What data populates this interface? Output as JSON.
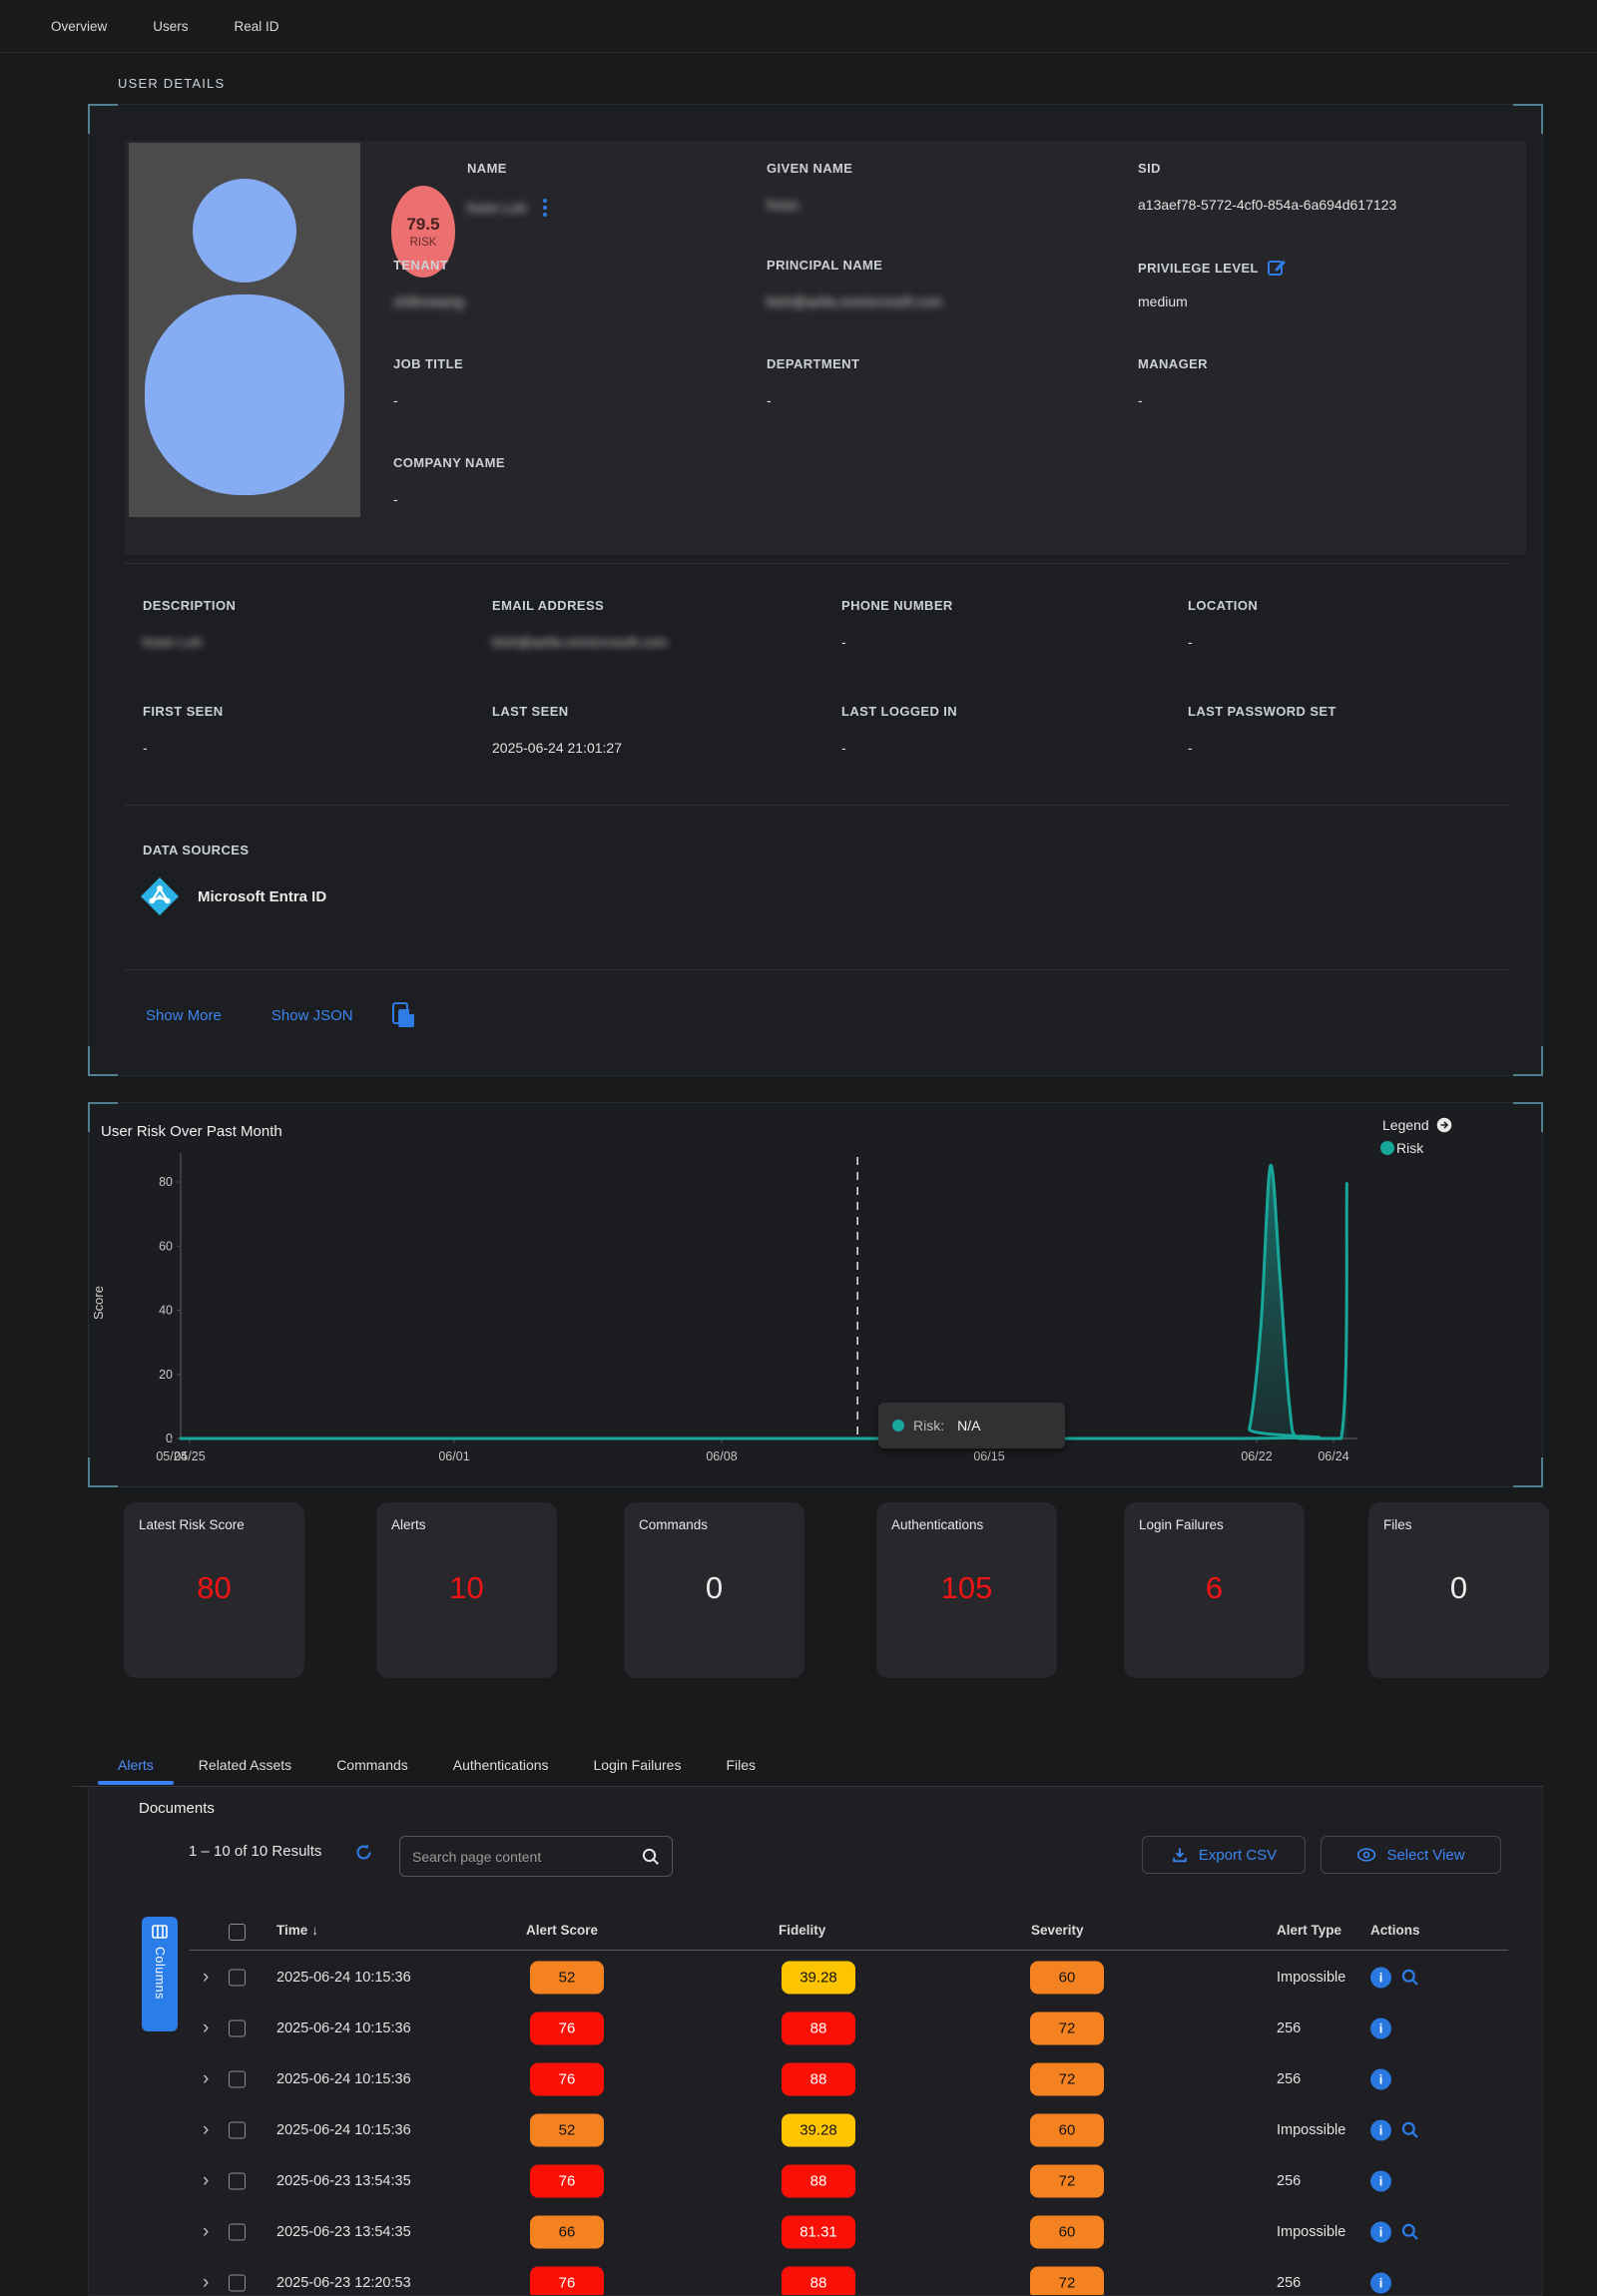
{
  "nav": {
    "tabs": [
      {
        "label": "Overview"
      },
      {
        "label": "Users"
      },
      {
        "label": "Real ID"
      }
    ]
  },
  "user_details": {
    "section_title": "USER DETAILS",
    "risk_badge": {
      "score": "79.5",
      "label": "RISK"
    },
    "profile_fields": [
      {
        "label": "NAME",
        "value": "Keen Loh",
        "blurred": true,
        "menu": true
      },
      {
        "label": "GIVEN NAME",
        "value": "Keen",
        "blurred": true
      },
      {
        "label": "SID",
        "value": "a13aef78-5772-4cf0-854a-6a694d617123"
      },
      {
        "label": "TENANT",
        "value": "zhifenwang",
        "blurred": true
      },
      {
        "label": "PRINCIPAL NAME",
        "value": "kloh@aella.onmicrosoft.com",
        "blurred": true
      },
      {
        "label": "PRIVILEGE LEVEL",
        "value": "medium",
        "edit": true
      },
      {
        "label": "JOB TITLE",
        "value": "-"
      },
      {
        "label": "DEPARTMENT",
        "value": "-"
      },
      {
        "label": "MANAGER",
        "value": "-"
      },
      {
        "label": "COMPANY NAME",
        "value": "-"
      }
    ],
    "detail_fields": [
      {
        "label": "DESCRIPTION",
        "value": "Keen Loh",
        "blurred": true
      },
      {
        "label": "EMAIL ADDRESS",
        "value": "kloh@aella.onmicrosoft.com",
        "blurred": true
      },
      {
        "label": "PHONE NUMBER",
        "value": "-"
      },
      {
        "label": "LOCATION",
        "value": "-"
      },
      {
        "label": "FIRST SEEN",
        "value": "-"
      },
      {
        "label": "LAST SEEN",
        "value": "2025-06-24 21:01:27"
      },
      {
        "label": "LAST LOGGED IN",
        "value": "-"
      },
      {
        "label": "LAST PASSWORD SET",
        "value": "-"
      }
    ],
    "data_sources": {
      "title": "DATA SOURCES",
      "items": [
        {
          "name": "Microsoft Entra ID"
        }
      ]
    },
    "links": {
      "show_more": "Show More",
      "show_json": "Show JSON"
    }
  },
  "chart": {
    "title": "User Risk Over Past Month",
    "legend_title": "Legend",
    "ylabel": "Score",
    "tooltip": {
      "series": "Risk",
      "label": "Risk:",
      "value": "N/A"
    }
  },
  "chart_data": {
    "type": "area",
    "series_name": "Risk",
    "color": "#18a79b",
    "x": [
      "05/24",
      "05/25",
      "05/26",
      "05/27",
      "05/28",
      "05/29",
      "05/30",
      "05/31",
      "06/01",
      "06/02",
      "06/03",
      "06/04",
      "06/05",
      "06/06",
      "06/07",
      "06/08",
      "06/09",
      "06/10",
      "06/11",
      "06/12",
      "06/13",
      "06/14",
      "06/15",
      "06/16",
      "06/17",
      "06/18",
      "06/19",
      "06/20",
      "06/21",
      "06/22",
      "06/23",
      "06/24"
    ],
    "values": [
      0,
      0,
      0,
      0,
      0,
      0,
      0,
      0,
      0,
      0,
      0,
      0,
      0,
      0,
      0,
      0,
      0,
      0,
      0,
      0,
      0,
      0,
      0,
      0,
      0,
      0,
      0,
      0,
      0,
      85,
      0,
      79.5
    ],
    "yticks": [
      0,
      20,
      40,
      60,
      80
    ],
    "xtick_labels": [
      "05/24",
      "05/25",
      "06/01",
      "06/08",
      "06/15",
      "06/22",
      "06/24"
    ],
    "ylim": [
      0,
      90
    ],
    "marker_line_x": "06/12",
    "render_points": [
      [
        -0.16,
        0
      ],
      [
        27.5,
        0
      ],
      [
        27.8,
        3
      ],
      [
        28.1,
        35
      ],
      [
        28.35,
        85
      ],
      [
        28.6,
        50
      ],
      [
        28.85,
        10
      ],
      [
        29.1,
        0
      ],
      [
        30.2,
        0
      ],
      [
        30.35,
        79.5
      ]
    ]
  },
  "stats": [
    {
      "label": "Latest Risk Score",
      "value": "80",
      "alert": true
    },
    {
      "label": "Alerts",
      "value": "10",
      "alert": true
    },
    {
      "label": "Commands",
      "value": "0",
      "alert": false
    },
    {
      "label": "Authentications",
      "value": "105",
      "alert": true
    },
    {
      "label": "Login Failures",
      "value": "6",
      "alert": true
    },
    {
      "label": "Files",
      "value": "0",
      "alert": false
    }
  ],
  "tabs": [
    {
      "label": "Alerts",
      "active": true
    },
    {
      "label": "Related Assets",
      "active": false
    },
    {
      "label": "Commands",
      "active": false
    },
    {
      "label": "Authentications",
      "active": false
    },
    {
      "label": "Login Failures",
      "active": false
    },
    {
      "label": "Files",
      "active": false
    }
  ],
  "documents": {
    "title": "Documents",
    "results_text": "1 – 10 of 10 Results",
    "search_placeholder": "Search page content",
    "export_label": "Export CSV",
    "select_view_label": "Select View",
    "columns_label": "Columns",
    "table": {
      "headers": [
        "Time",
        "Alert Score",
        "Fidelity",
        "Severity",
        "Alert Type",
        "Actions"
      ],
      "badge_colors": {
        "red": "#fb1007",
        "orange": "#f58220",
        "yellow": "#fdc501"
      },
      "rows": [
        {
          "time": "2025-06-24 10:15:36",
          "score": "52",
          "score_color": "orange",
          "fidelity": "39.28",
          "fidelity_color": "yellow",
          "severity": "60",
          "severity_color": "orange",
          "type": "Impossible",
          "search_action": true
        },
        {
          "time": "2025-06-24 10:15:36",
          "score": "76",
          "score_color": "red",
          "fidelity": "88",
          "fidelity_color": "red",
          "severity": "72",
          "severity_color": "orange",
          "type": "256",
          "search_action": false
        },
        {
          "time": "2025-06-24 10:15:36",
          "score": "76",
          "score_color": "red",
          "fidelity": "88",
          "fidelity_color": "red",
          "severity": "72",
          "severity_color": "orange",
          "type": "256",
          "search_action": false
        },
        {
          "time": "2025-06-24 10:15:36",
          "score": "52",
          "score_color": "orange",
          "fidelity": "39.28",
          "fidelity_color": "yellow",
          "severity": "60",
          "severity_color": "orange",
          "type": "Impossible",
          "search_action": true
        },
        {
          "time": "2025-06-23 13:54:35",
          "score": "76",
          "score_color": "red",
          "fidelity": "88",
          "fidelity_color": "red",
          "severity": "72",
          "severity_color": "orange",
          "type": "256",
          "search_action": false
        },
        {
          "time": "2025-06-23 13:54:35",
          "score": "66",
          "score_color": "orange",
          "fidelity": "81.31",
          "fidelity_color": "red",
          "severity": "60",
          "severity_color": "orange",
          "type": "Impossible",
          "search_action": true
        },
        {
          "time": "2025-06-23 12:20:53",
          "score": "76",
          "score_color": "red",
          "fidelity": "88",
          "fidelity_color": "red",
          "severity": "72",
          "severity_color": "orange",
          "type": "256",
          "search_action": false
        }
      ]
    }
  }
}
